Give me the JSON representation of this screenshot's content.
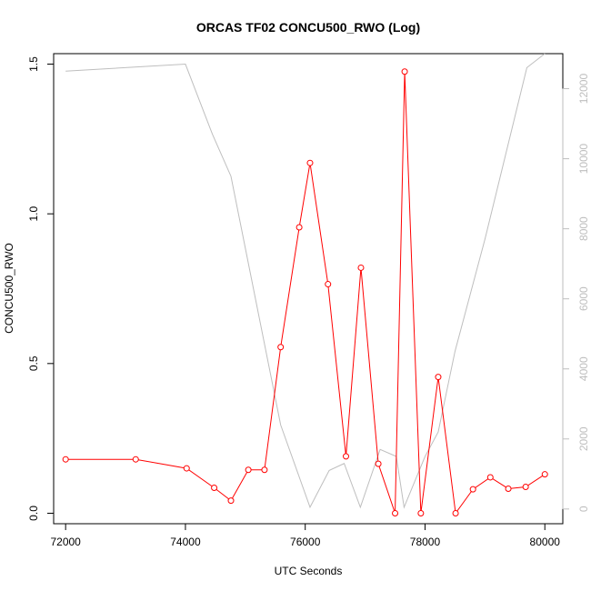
{
  "chart_data": {
    "type": "line",
    "title": "ORCAS TF02 CONCU500_RWO (Log)",
    "xlabel": "UTC Seconds",
    "ylabel": "CONCU500_RWO",
    "xlim": [
      71800,
      80300
    ],
    "ylim": [
      -0.035,
      1.535
    ],
    "y2lim": [
      -420,
      13000
    ],
    "x_ticks": [
      "72000",
      "74000",
      "76000",
      "78000",
      "80000"
    ],
    "y_ticks": [
      "0.0",
      "0.5",
      "1.0",
      "1.5"
    ],
    "y2_ticks": [
      "0",
      "2000",
      "4000",
      "6000",
      "8000",
      "10000",
      "12000"
    ],
    "series": [
      {
        "color": "#ff0000",
        "marker": "open-circle",
        "axis": "left",
        "x": [
          72000,
          73170,
          74020,
          74480,
          74760,
          75050,
          75320,
          75590,
          75900,
          76080,
          76380,
          76680,
          76930,
          77220,
          77500,
          77660,
          77930,
          78220,
          78510,
          78800,
          79090,
          79390,
          79680,
          80000
        ],
        "y": [
          0.18,
          0.18,
          0.15,
          0.085,
          0.042,
          0.145,
          0.145,
          0.555,
          0.955,
          1.17,
          0.765,
          0.19,
          0.82,
          0.165,
          0.0,
          1.475,
          0.0,
          0.455,
          0.0,
          0.08,
          0.12,
          0.082,
          0.088,
          0.13
        ]
      },
      {
        "color": "#bebebe",
        "marker": "none",
        "axis": "right",
        "x": [
          72000,
          74000,
          74450,
          74760,
          75590,
          76080,
          76400,
          76650,
          76920,
          77250,
          77520,
          77650,
          78000,
          78220,
          78500,
          79000,
          79700,
          80000
        ],
        "y": [
          12500,
          12700,
          10700,
          9500,
          2400,
          50,
          1100,
          1300,
          50,
          1700,
          1500,
          50,
          1500,
          2200,
          4500,
          7700,
          12600,
          13000
        ]
      }
    ]
  }
}
